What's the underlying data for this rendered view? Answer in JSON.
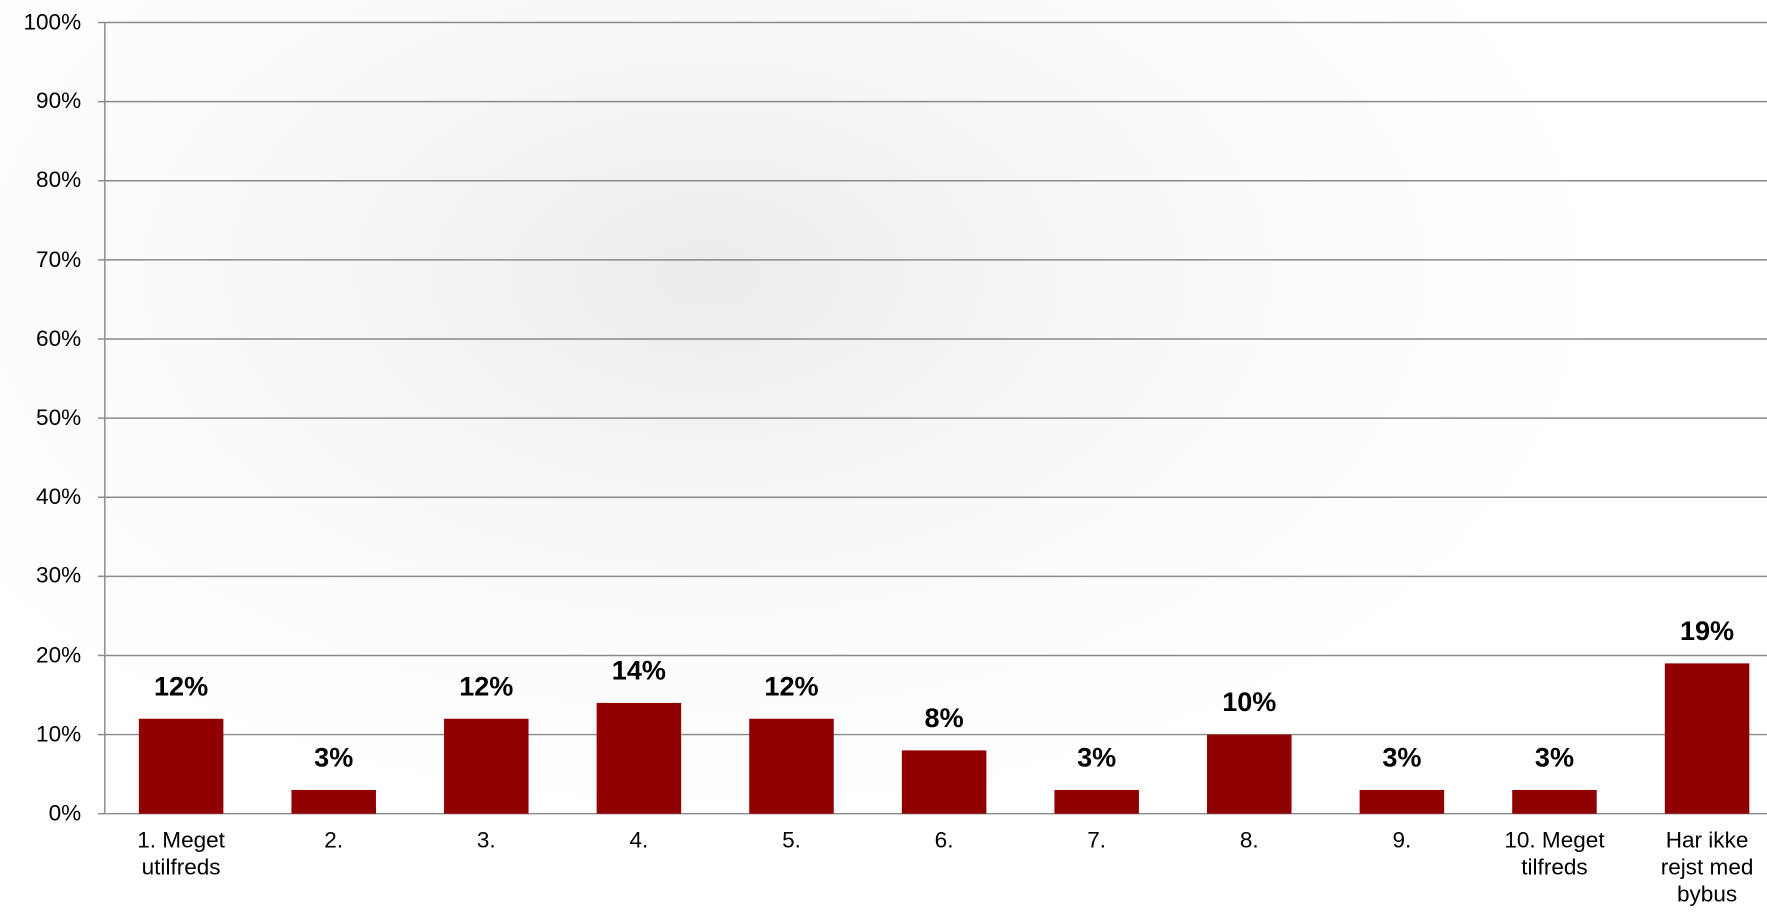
{
  "chart_data": {
    "type": "bar",
    "categories": [
      "1. Meget utilfreds",
      "2.",
      "3.",
      "4.",
      "5.",
      "6.",
      "7.",
      "8.",
      "9.",
      "10. Meget tilfreds",
      "Har ikke rejst med bybus"
    ],
    "values": [
      12,
      3,
      12,
      14,
      12,
      8,
      3,
      10,
      3,
      3,
      19
    ],
    "value_labels": [
      "12%",
      "3%",
      "12%",
      "14%",
      "12%",
      "8%",
      "3%",
      "10%",
      "3%",
      "3%",
      "19%"
    ],
    "color": "#900000",
    "ylim": [
      0,
      100
    ],
    "yticks": [
      {
        "value": 0,
        "label": "0%"
      },
      {
        "value": 10,
        "label": "10%"
      },
      {
        "value": 20,
        "label": "20%"
      },
      {
        "value": 30,
        "label": "30%"
      },
      {
        "value": 40,
        "label": "40%"
      },
      {
        "value": 50,
        "label": "50%"
      },
      {
        "value": 60,
        "label": "60%"
      },
      {
        "value": 70,
        "label": "70%"
      },
      {
        "value": 80,
        "label": "80%"
      },
      {
        "value": 90,
        "label": "90%"
      },
      {
        "value": 100,
        "label": "100%"
      }
    ],
    "grid": true
  }
}
